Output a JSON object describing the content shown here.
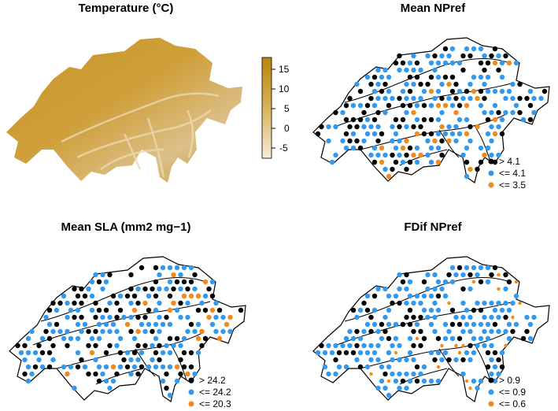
{
  "figure": {
    "panels": [
      {
        "title": "Temperature (°C)",
        "kind": "raster",
        "colorbar": {
          "ticks": [
            "15",
            "10",
            "5",
            "0",
            "-5"
          ],
          "color_low": "#f4ecd8",
          "color_high": "#b8860b"
        }
      },
      {
        "title": "Mean NPref",
        "kind": "points",
        "legend": [
          {
            "label": "> 4.1",
            "color": "#000000"
          },
          {
            "label": "<= 4.1",
            "color": "#3399ee"
          },
          {
            "label": "<= 3.5",
            "color": "#f08a1c"
          }
        ]
      },
      {
        "title": "Mean SLA (mm2 mg−1)",
        "kind": "points",
        "legend": [
          {
            "label": "> 24.2",
            "color": "#000000"
          },
          {
            "label": "<= 24.2",
            "color": "#3399ee"
          },
          {
            "label": "<= 20.3",
            "color": "#f08a1c"
          }
        ]
      },
      {
        "title": "FDif NPref",
        "kind": "points",
        "legend": [
          {
            "label": "> 0.9",
            "color": "#000000"
          },
          {
            "label": "<= 0.9",
            "color": "#3399ee"
          },
          {
            "label": "<= 0.6",
            "color": "#f08a1c"
          }
        ]
      }
    ]
  }
}
